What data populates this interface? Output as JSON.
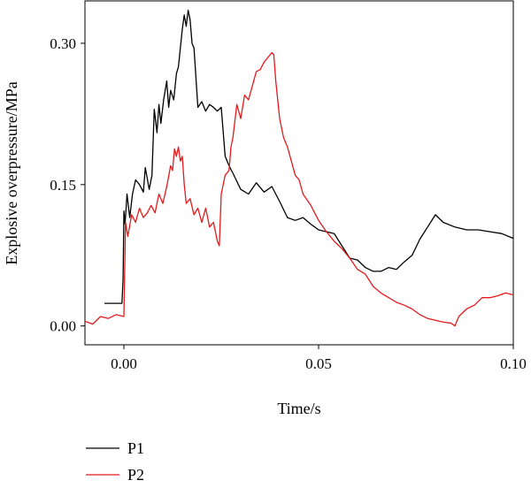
{
  "chart_data": {
    "type": "line",
    "title": "",
    "xlabel": "Time/s",
    "ylabel": "Explosive overpressure/MPa",
    "xlim": [
      -0.01,
      0.1
    ],
    "ylim": [
      -0.02,
      0.345
    ],
    "xticks": [
      0.0,
      0.05,
      0.1
    ],
    "xtick_labels": [
      "0.00",
      "0.05",
      "0.10"
    ],
    "yticks": [
      0.0,
      0.15,
      0.3
    ],
    "ytick_labels": [
      "0.00",
      "0.15",
      "0.30"
    ],
    "grid": false,
    "legend_position": "bottom-left, below plot",
    "series": [
      {
        "name": "P1",
        "color": "#000000",
        "x": [
          -0.005,
          -0.001,
          -0.0005,
          -0.0002,
          0.0,
          0.0003,
          0.0008,
          0.0015,
          0.0022,
          0.003,
          0.004,
          0.005,
          0.0055,
          0.0065,
          0.0072,
          0.0078,
          0.0085,
          0.009,
          0.0095,
          0.0102,
          0.011,
          0.0115,
          0.012,
          0.0128,
          0.0135,
          0.014,
          0.0145,
          0.015,
          0.0155,
          0.016,
          0.0165,
          0.017,
          0.0175,
          0.018,
          0.019,
          0.02,
          0.021,
          0.022,
          0.023,
          0.024,
          0.025,
          0.026,
          0.027,
          0.028,
          0.03,
          0.032,
          0.034,
          0.036,
          0.038,
          0.04,
          0.042,
          0.044,
          0.046,
          0.048,
          0.05,
          0.052,
          0.054,
          0.056,
          0.058,
          0.06,
          0.062,
          0.064,
          0.066,
          0.068,
          0.07,
          0.072,
          0.074,
          0.076,
          0.078,
          0.08,
          0.082,
          0.085,
          0.088,
          0.091,
          0.094,
          0.097,
          0.1
        ],
        "y": [
          0.024,
          0.024,
          0.024,
          0.05,
          0.122,
          0.108,
          0.14,
          0.115,
          0.14,
          0.155,
          0.15,
          0.142,
          0.168,
          0.145,
          0.16,
          0.23,
          0.205,
          0.235,
          0.215,
          0.24,
          0.26,
          0.232,
          0.25,
          0.24,
          0.268,
          0.275,
          0.295,
          0.315,
          0.33,
          0.318,
          0.335,
          0.325,
          0.3,
          0.295,
          0.232,
          0.238,
          0.228,
          0.235,
          0.232,
          0.228,
          0.232,
          0.18,
          0.17,
          0.162,
          0.145,
          0.14,
          0.152,
          0.142,
          0.148,
          0.132,
          0.115,
          0.112,
          0.115,
          0.108,
          0.102,
          0.1,
          0.098,
          0.085,
          0.072,
          0.07,
          0.062,
          0.058,
          0.058,
          0.062,
          0.06,
          0.068,
          0.075,
          0.092,
          0.105,
          0.118,
          0.11,
          0.105,
          0.102,
          0.102,
          0.1,
          0.098,
          0.093
        ]
      },
      {
        "name": "P2",
        "color": "#e41a1c",
        "x": [
          -0.01,
          -0.008,
          -0.006,
          -0.004,
          -0.002,
          0.0,
          0.0004,
          0.001,
          0.002,
          0.003,
          0.004,
          0.005,
          0.006,
          0.007,
          0.008,
          0.009,
          0.01,
          0.011,
          0.012,
          0.0125,
          0.013,
          0.0135,
          0.014,
          0.0145,
          0.015,
          0.0155,
          0.016,
          0.017,
          0.018,
          0.019,
          0.02,
          0.021,
          0.022,
          0.023,
          0.024,
          0.0245,
          0.025,
          0.026,
          0.027,
          0.0275,
          0.028,
          0.029,
          0.03,
          0.031,
          0.032,
          0.033,
          0.034,
          0.035,
          0.036,
          0.037,
          0.038,
          0.0385,
          0.039,
          0.04,
          0.041,
          0.042,
          0.043,
          0.044,
          0.045,
          0.046,
          0.048,
          0.05,
          0.052,
          0.054,
          0.056,
          0.058,
          0.06,
          0.062,
          0.064,
          0.066,
          0.068,
          0.07,
          0.072,
          0.074,
          0.076,
          0.078,
          0.08,
          0.082,
          0.084,
          0.085,
          0.086,
          0.088,
          0.09,
          0.092,
          0.094,
          0.096,
          0.098,
          0.1
        ],
        "y": [
          0.005,
          0.002,
          0.01,
          0.008,
          0.012,
          0.01,
          0.11,
          0.095,
          0.118,
          0.11,
          0.125,
          0.115,
          0.12,
          0.128,
          0.12,
          0.14,
          0.13,
          0.148,
          0.17,
          0.165,
          0.188,
          0.18,
          0.19,
          0.175,
          0.18,
          0.15,
          0.13,
          0.135,
          0.118,
          0.125,
          0.11,
          0.125,
          0.105,
          0.11,
          0.09,
          0.085,
          0.14,
          0.16,
          0.165,
          0.19,
          0.2,
          0.235,
          0.22,
          0.245,
          0.24,
          0.255,
          0.27,
          0.272,
          0.28,
          0.285,
          0.29,
          0.288,
          0.26,
          0.22,
          0.2,
          0.19,
          0.175,
          0.16,
          0.155,
          0.14,
          0.128,
          0.112,
          0.1,
          0.09,
          0.082,
          0.072,
          0.06,
          0.055,
          0.042,
          0.035,
          0.03,
          0.025,
          0.022,
          0.018,
          0.012,
          0.008,
          0.006,
          0.004,
          0.003,
          0.0,
          0.01,
          0.018,
          0.022,
          0.03,
          0.03,
          0.032,
          0.035,
          0.033
        ]
      }
    ]
  }
}
